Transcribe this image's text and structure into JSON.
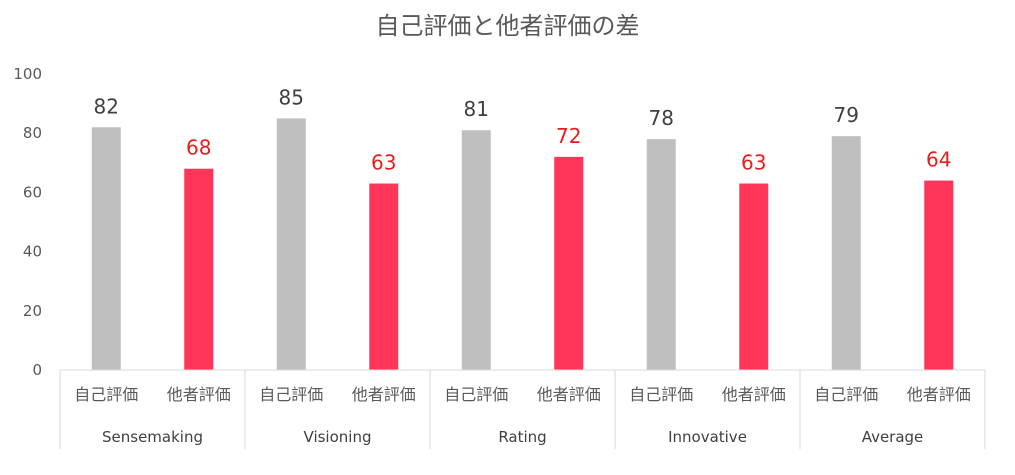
{
  "chart_data": {
    "type": "bar",
    "title": "自己評価と他者評価の差",
    "xlabel": "",
    "ylabel": "",
    "ylim": [
      0,
      100
    ],
    "yticks": [
      0,
      20,
      40,
      60,
      80,
      100
    ],
    "grid": false,
    "legend": "none",
    "categories": [
      "Sensemaking",
      "Visioning",
      "Rating",
      "Innovative",
      "Average"
    ],
    "series": [
      {
        "name": "自己評価",
        "color": "#bfbfbf",
        "label_color": "#404040",
        "values": [
          82,
          85,
          81,
          78,
          79
        ]
      },
      {
        "name": "他者評価",
        "color": "#ff3559",
        "label_color": "#e81e1e",
        "values": [
          68,
          63,
          72,
          63,
          64
        ]
      }
    ]
  }
}
